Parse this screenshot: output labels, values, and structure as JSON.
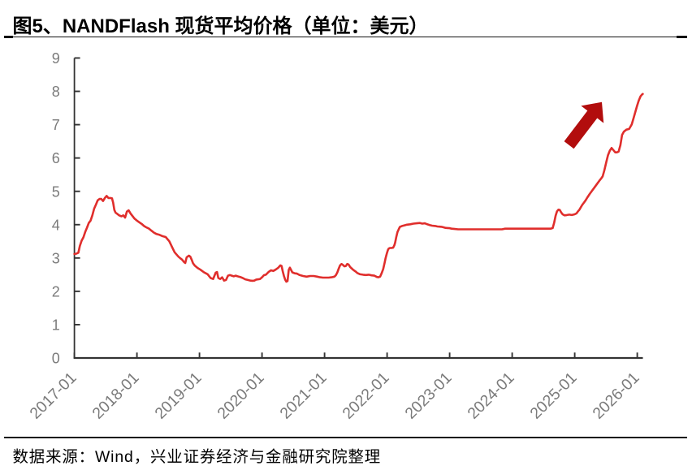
{
  "figure": {
    "title": "图5、NANDFlash 现货平均价格（单位：美元）",
    "source_note": "数据来源：Wind，兴业证券经济与金融研究院整理"
  },
  "colors": {
    "background": "#ffffff",
    "line": "#e02e2c",
    "arrow": "#b20d0d",
    "axis": "#333333",
    "tick_label": "#7b7b7b",
    "rule": "#111111",
    "text": "#000000"
  },
  "chart_data": {
    "type": "line",
    "title": "NANDFlash 现货平均价格",
    "unit": "美元",
    "xlabel": "",
    "ylabel": "",
    "ylim": [
      0,
      9
    ],
    "xlim": [
      2017.0,
      2026.09
    ],
    "grid": false,
    "legend": null,
    "y_ticks": [
      0,
      1,
      2,
      3,
      4,
      5,
      6,
      7,
      8,
      9
    ],
    "x_ticks": [
      2017,
      2018,
      2019,
      2020,
      2021,
      2022,
      2023,
      2024,
      2025,
      2026
    ],
    "x_tick_labels": [
      "2017-01",
      "2018-01",
      "2019-01",
      "2020-01",
      "2021-01",
      "2022-01",
      "2023-01",
      "2024-01",
      "2025-01",
      "2026-01"
    ],
    "series": [
      {
        "name": "NANDFlash现货平均价格（美元）",
        "x": [
          2017.0,
          2017.031,
          2017.064,
          2017.087,
          2017.116,
          2017.144,
          2017.173,
          2017.201,
          2017.23,
          2017.258,
          2017.287,
          2017.316,
          2017.344,
          2017.373,
          2017.401,
          2017.43,
          2017.458,
          2017.487,
          2017.516,
          2017.544,
          2017.573,
          2017.601,
          2017.619,
          2017.639,
          2017.658,
          2017.687,
          2017.716,
          2017.753,
          2017.782,
          2017.81,
          2017.839,
          2017.868,
          2017.896,
          2017.925,
          2017.962,
          2018.0,
          2018.039,
          2018.077,
          2018.113,
          2018.148,
          2018.194,
          2018.232,
          2018.273,
          2018.313,
          2018.353,
          2018.401,
          2018.46,
          2018.518,
          2018.564,
          2018.603,
          2018.635,
          2018.664,
          2018.694,
          2018.722,
          2018.752,
          2018.773,
          2018.795,
          2018.831,
          2018.853,
          2018.875,
          2018.897,
          2018.926,
          2018.97,
          2019.014,
          2019.073,
          2019.131,
          2019.178,
          2019.218,
          2019.26,
          2019.281,
          2019.301,
          2019.332,
          2019.362,
          2019.394,
          2019.425,
          2019.456,
          2019.486,
          2019.517,
          2019.548,
          2019.579,
          2019.609,
          2019.651,
          2019.692,
          2019.732,
          2019.774,
          2019.816,
          2019.847,
          2019.877,
          2019.908,
          2019.939,
          2019.969,
          2020.0,
          2020.031,
          2020.062,
          2020.104,
          2020.144,
          2020.179,
          2020.217,
          2020.256,
          2020.294,
          2020.313,
          2020.331,
          2020.351,
          2020.37,
          2020.388,
          2020.408,
          2020.427,
          2020.445,
          2020.465,
          2020.484,
          2020.522,
          2020.56,
          2020.599,
          2020.656,
          2020.713,
          2020.769,
          2020.826,
          2020.883,
          2020.929,
          2020.974,
          2021.019,
          2021.065,
          2021.112,
          2021.157,
          2021.179,
          2021.203,
          2021.226,
          2021.248,
          2021.271,
          2021.295,
          2021.317,
          2021.34,
          2021.362,
          2021.386,
          2021.409,
          2021.431,
          2021.455,
          2021.477,
          2021.5,
          2021.523,
          2021.569,
          2021.614,
          2021.66,
          2021.705,
          2021.752,
          2021.797,
          2021.836,
          2021.862,
          2021.888,
          2021.914,
          2021.938,
          2021.96,
          2021.975,
          2021.995,
          2022.013,
          2022.025,
          2022.044,
          2022.07,
          2022.096,
          2022.116,
          2022.129,
          2022.147,
          2022.166,
          2022.186,
          2022.204,
          2022.239,
          2022.278,
          2022.317,
          2022.369,
          2022.421,
          2022.473,
          2022.525,
          2022.564,
          2022.603,
          2022.642,
          2022.681,
          2022.719,
          2022.771,
          2022.804,
          2022.836,
          2022.869,
          2022.901,
          2022.934,
          2022.966,
          2022.999,
          2023.031,
          2023.083,
          2023.135,
          2023.171,
          2023.206,
          2023.242,
          2023.278,
          2023.317,
          2023.356,
          2023.395,
          2023.434,
          2023.473,
          2023.512,
          2023.551,
          2023.59,
          2023.629,
          2023.668,
          2023.701,
          2023.735,
          2023.769,
          2023.803,
          2023.836,
          2023.888,
          2023.927,
          2023.966,
          2024.005,
          2024.044,
          2024.083,
          2024.122,
          2024.16,
          2024.196,
          2024.234,
          2024.27,
          2024.308,
          2024.344,
          2024.382,
          2024.421,
          2024.46,
          2024.499,
          2024.538,
          2024.577,
          2024.616,
          2024.648,
          2024.671,
          2024.695,
          2024.717,
          2024.739,
          2024.761,
          2024.783,
          2024.806,
          2024.836,
          2024.875,
          2024.914,
          2024.953,
          2024.999,
          2025.03,
          2025.053,
          2025.075,
          2025.097,
          2025.119,
          2025.143,
          2025.174,
          2025.2,
          2025.239,
          2025.278,
          2025.317,
          2025.356,
          2025.395,
          2025.421,
          2025.447,
          2025.473,
          2025.505,
          2025.531,
          2025.561,
          2025.59,
          2025.617,
          2025.648,
          2025.674,
          2025.701,
          2025.73,
          2025.757,
          2025.786,
          2025.827,
          2025.87,
          2025.912,
          2025.94,
          2025.968,
          2025.996,
          2026.023,
          2026.052,
          2026.079,
          2026.088
        ],
        "y": [
          3.12,
          3.13,
          3.16,
          3.36,
          3.52,
          3.62,
          3.78,
          3.91,
          4.05,
          4.12,
          4.28,
          4.48,
          4.6,
          4.73,
          4.77,
          4.77,
          4.71,
          4.8,
          4.86,
          4.8,
          4.8,
          4.79,
          4.66,
          4.44,
          4.36,
          4.32,
          4.28,
          4.25,
          4.28,
          4.21,
          4.39,
          4.43,
          4.34,
          4.27,
          4.18,
          4.12,
          4.07,
          4.02,
          3.96,
          3.92,
          3.88,
          3.82,
          3.76,
          3.72,
          3.7,
          3.66,
          3.63,
          3.5,
          3.32,
          3.17,
          3.1,
          3.04,
          2.99,
          2.95,
          2.88,
          2.85,
          3.02,
          3.07,
          3.04,
          2.95,
          2.84,
          2.77,
          2.7,
          2.65,
          2.57,
          2.51,
          2.4,
          2.37,
          2.56,
          2.58,
          2.4,
          2.37,
          2.42,
          2.32,
          2.34,
          2.47,
          2.49,
          2.47,
          2.45,
          2.47,
          2.45,
          2.43,
          2.4,
          2.36,
          2.34,
          2.32,
          2.315,
          2.32,
          2.353,
          2.36,
          2.37,
          2.42,
          2.484,
          2.5,
          2.58,
          2.63,
          2.61,
          2.65,
          2.7,
          2.78,
          2.76,
          2.6,
          2.46,
          2.35,
          2.29,
          2.31,
          2.64,
          2.71,
          2.64,
          2.57,
          2.54,
          2.53,
          2.49,
          2.46,
          2.44,
          2.46,
          2.46,
          2.44,
          2.42,
          2.41,
          2.41,
          2.41,
          2.42,
          2.44,
          2.48,
          2.56,
          2.68,
          2.78,
          2.82,
          2.79,
          2.75,
          2.76,
          2.82,
          2.8,
          2.73,
          2.69,
          2.65,
          2.62,
          2.59,
          2.55,
          2.51,
          2.5,
          2.49,
          2.5,
          2.48,
          2.47,
          2.43,
          2.42,
          2.44,
          2.55,
          2.67,
          2.85,
          2.99,
          3.13,
          3.24,
          3.28,
          3.3,
          3.3,
          3.31,
          3.38,
          3.46,
          3.63,
          3.78,
          3.86,
          3.93,
          3.96,
          3.98,
          4.0,
          4.01,
          4.03,
          4.04,
          4.05,
          4.03,
          4.04,
          4.01,
          3.99,
          3.97,
          3.96,
          3.945,
          3.94,
          3.935,
          3.92,
          3.905,
          3.9,
          3.894,
          3.88,
          3.87,
          3.86,
          3.86,
          3.86,
          3.86,
          3.86,
          3.86,
          3.86,
          3.86,
          3.86,
          3.86,
          3.86,
          3.86,
          3.86,
          3.86,
          3.86,
          3.86,
          3.86,
          3.86,
          3.86,
          3.86,
          3.88,
          3.88,
          3.88,
          3.88,
          3.88,
          3.88,
          3.88,
          3.88,
          3.88,
          3.88,
          3.88,
          3.88,
          3.88,
          3.88,
          3.88,
          3.88,
          3.88,
          3.88,
          3.88,
          3.88,
          3.9,
          4.06,
          4.27,
          4.4,
          4.45,
          4.44,
          4.37,
          4.31,
          4.28,
          4.29,
          4.3,
          4.29,
          4.31,
          4.34,
          4.4,
          4.45,
          4.52,
          4.59,
          4.65,
          4.73,
          4.81,
          4.92,
          5.02,
          5.12,
          5.22,
          5.32,
          5.38,
          5.45,
          5.62,
          5.88,
          6.08,
          6.22,
          6.3,
          6.24,
          6.17,
          6.17,
          6.19,
          6.38,
          6.69,
          6.79,
          6.85,
          6.87,
          7.01,
          7.19,
          7.37,
          7.56,
          7.72,
          7.85,
          7.91,
          7.92
        ]
      }
    ],
    "annotation": {
      "type": "up-arrow",
      "from": {
        "x": 2024.908,
        "y": 6.39
      },
      "to": {
        "x": 2025.434,
        "y": 7.68
      }
    }
  }
}
